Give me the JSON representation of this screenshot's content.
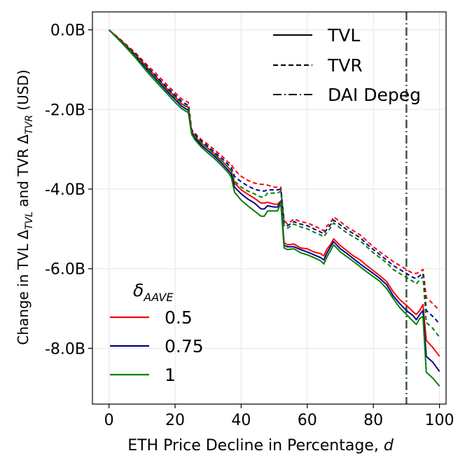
{
  "chart_data": {
    "type": "line",
    "xlabel": "ETH Price Decline in Percentage, d",
    "xlabel_parts": {
      "text": "ETH Price Decline in Percentage, ",
      "var": "d"
    },
    "ylabel": "Change in TVL Δ_TVL and TVR Δ_TVR (USD)",
    "ylabel_parts": {
      "a": "Change in TVL Δ",
      "sub1": "TVL",
      "b": " and TVR Δ",
      "sub2": "TVR",
      "c": " (USD)"
    },
    "xlim": [
      -5,
      102
    ],
    "ylim": [
      -9.4,
      0.45
    ],
    "x_ticks": [
      0,
      20,
      40,
      60,
      80,
      100
    ],
    "x_tick_labels": [
      "0",
      "20",
      "40",
      "60",
      "80",
      "100"
    ],
    "y_ticks": [
      0,
      -2,
      -4,
      -6,
      -8
    ],
    "y_tick_labels": [
      "0.0B",
      "-2.0B",
      "-4.0B",
      "-6.0B",
      "-8.0B"
    ],
    "grid": true,
    "depeg_line_x": 90,
    "style_legend": {
      "location": "top-right",
      "entries": [
        {
          "label": "TVL",
          "style": "solid"
        },
        {
          "label": "TVR",
          "style": "dashed"
        },
        {
          "label": "DAI Depeg",
          "style": "dashdot"
        }
      ]
    },
    "color_legend": {
      "location": "lower-left",
      "title": "δ_AAVE",
      "title_parts": {
        "base": "δ",
        "sub": "AAVE"
      },
      "entries": [
        {
          "label": "0.5",
          "color": "#ff0000"
        },
        {
          "label": "0.75",
          "color": "#00008b"
        },
        {
          "label": "1",
          "color": "#008000"
        }
      ]
    },
    "colors": {
      "depeg": "#3d5a45",
      "grid": "#e5e5e5"
    },
    "x": [
      0,
      2,
      4,
      6,
      8,
      10,
      12,
      14,
      16,
      18,
      20,
      22,
      23,
      24,
      25,
      26,
      28,
      30,
      32,
      34,
      36,
      37,
      38,
      40,
      42,
      44,
      46,
      47,
      48,
      50,
      51,
      52,
      53,
      54,
      56,
      58,
      60,
      62,
      64,
      65,
      66,
      67,
      68,
      70,
      72,
      74,
      76,
      78,
      80,
      82,
      84,
      86,
      88,
      90,
      92,
      93,
      94,
      95,
      96,
      98,
      100
    ],
    "series": [
      {
        "name": "TVL",
        "delta": "0.5",
        "color": "#ff0000",
        "style": "solid",
        "values": [
          0,
          -0.15,
          -0.3,
          -0.46,
          -0.62,
          -0.8,
          -0.98,
          -1.16,
          -1.34,
          -1.52,
          -1.68,
          -1.86,
          -1.9,
          -1.95,
          -2.55,
          -2.68,
          -2.85,
          -2.98,
          -3.12,
          -3.28,
          -3.45,
          -3.55,
          -3.85,
          -4.02,
          -4.13,
          -4.23,
          -4.35,
          -4.35,
          -4.33,
          -4.38,
          -4.38,
          -4.3,
          -5.35,
          -5.4,
          -5.38,
          -5.48,
          -5.5,
          -5.58,
          -5.62,
          -5.68,
          -5.5,
          -5.4,
          -5.25,
          -5.42,
          -5.55,
          -5.68,
          -5.78,
          -5.92,
          -6.05,
          -6.18,
          -6.32,
          -6.58,
          -6.78,
          -6.92,
          -7.08,
          -7.15,
          -7.05,
          -6.9,
          -7.8,
          -7.98,
          -8.2
        ]
      },
      {
        "name": "TVL",
        "delta": "0.75",
        "color": "#00008b",
        "style": "solid",
        "values": [
          0,
          -0.16,
          -0.32,
          -0.49,
          -0.66,
          -0.85,
          -1.04,
          -1.22,
          -1.4,
          -1.58,
          -1.75,
          -1.92,
          -1.97,
          -2.02,
          -2.58,
          -2.72,
          -2.9,
          -3.04,
          -3.18,
          -3.34,
          -3.52,
          -3.62,
          -3.95,
          -4.12,
          -4.25,
          -4.35,
          -4.5,
          -4.5,
          -4.42,
          -4.45,
          -4.45,
          -4.32,
          -5.42,
          -5.45,
          -5.45,
          -5.52,
          -5.58,
          -5.65,
          -5.72,
          -5.78,
          -5.6,
          -5.45,
          -5.32,
          -5.5,
          -5.62,
          -5.75,
          -5.88,
          -6,
          -6.12,
          -6.25,
          -6.4,
          -6.68,
          -6.88,
          -7.05,
          -7.18,
          -7.28,
          -7.15,
          -7.05,
          -8.2,
          -8.35,
          -8.58
        ]
      },
      {
        "name": "TVL",
        "delta": "1",
        "color": "#008000",
        "style": "solid",
        "values": [
          0,
          -0.17,
          -0.34,
          -0.52,
          -0.7,
          -0.9,
          -1.1,
          -1.28,
          -1.46,
          -1.64,
          -1.82,
          -1.98,
          -2.03,
          -2.08,
          -2.62,
          -2.76,
          -2.95,
          -3.1,
          -3.24,
          -3.4,
          -3.58,
          -3.7,
          -4.08,
          -4.28,
          -4.42,
          -4.55,
          -4.68,
          -4.68,
          -4.55,
          -4.55,
          -4.55,
          -4.35,
          -5.48,
          -5.52,
          -5.5,
          -5.6,
          -5.65,
          -5.72,
          -5.8,
          -5.88,
          -5.7,
          -5.55,
          -5.4,
          -5.58,
          -5.7,
          -5.82,
          -5.95,
          -6.08,
          -6.2,
          -6.32,
          -6.5,
          -6.75,
          -6.98,
          -7.15,
          -7.32,
          -7.4,
          -7.25,
          -7.2,
          -8.6,
          -8.75,
          -8.95
        ]
      },
      {
        "name": "TVR",
        "delta": "0.5",
        "color": "#ff0000",
        "style": "dashed",
        "values": [
          0,
          -0.14,
          -0.28,
          -0.43,
          -0.58,
          -0.75,
          -0.92,
          -1.08,
          -1.25,
          -1.42,
          -1.58,
          -1.74,
          -1.78,
          -1.82,
          -2.5,
          -2.6,
          -2.76,
          -2.88,
          -3.02,
          -3.16,
          -3.32,
          -3.38,
          -3.52,
          -3.68,
          -3.78,
          -3.85,
          -3.88,
          -3.88,
          -3.9,
          -3.95,
          -3.95,
          -3.95,
          -4.78,
          -4.88,
          -4.75,
          -4.82,
          -4.85,
          -4.92,
          -5,
          -5.05,
          -4.92,
          -4.85,
          -4.7,
          -4.82,
          -4.95,
          -5.05,
          -5.15,
          -5.3,
          -5.45,
          -5.58,
          -5.7,
          -5.82,
          -5.92,
          -6.02,
          -6.12,
          -6.12,
          -6.08,
          -6.02,
          -6.72,
          -6.88,
          -7.05
        ]
      },
      {
        "name": "TVR",
        "delta": "0.75",
        "color": "#00008b",
        "style": "dashed",
        "values": [
          0,
          -0.15,
          -0.3,
          -0.45,
          -0.61,
          -0.79,
          -0.97,
          -1.14,
          -1.31,
          -1.48,
          -1.64,
          -1.8,
          -1.85,
          -1.9,
          -2.52,
          -2.63,
          -2.8,
          -2.93,
          -3.08,
          -3.22,
          -3.38,
          -3.46,
          -3.68,
          -3.82,
          -3.92,
          -4,
          -4.05,
          -4.05,
          -4.02,
          -4.02,
          -4.02,
          -4,
          -4.85,
          -4.92,
          -4.82,
          -4.88,
          -4.92,
          -5,
          -5.08,
          -5.12,
          -5,
          -4.9,
          -4.78,
          -4.9,
          -5.02,
          -5.12,
          -5.22,
          -5.38,
          -5.52,
          -5.65,
          -5.78,
          -5.92,
          -6.02,
          -6.12,
          -6.22,
          -6.25,
          -6.18,
          -6.12,
          -7.05,
          -7.2,
          -7.38
        ]
      },
      {
        "name": "TVR",
        "delta": "1",
        "color": "#008000",
        "style": "dashed",
        "values": [
          0,
          -0.16,
          -0.31,
          -0.47,
          -0.64,
          -0.82,
          -1.01,
          -1.19,
          -1.37,
          -1.54,
          -1.7,
          -1.86,
          -1.91,
          -1.96,
          -2.55,
          -2.67,
          -2.84,
          -2.98,
          -3.13,
          -3.28,
          -3.44,
          -3.52,
          -3.8,
          -3.95,
          -4.05,
          -4.12,
          -4.2,
          -4.2,
          -4.1,
          -4.1,
          -4.1,
          -4.05,
          -4.92,
          -4.98,
          -4.88,
          -4.95,
          -5,
          -5.08,
          -5.15,
          -5.2,
          -5.08,
          -4.98,
          -4.85,
          -4.98,
          -5.1,
          -5.2,
          -5.3,
          -5.45,
          -5.6,
          -5.72,
          -5.85,
          -6.02,
          -6.12,
          -6.22,
          -6.32,
          -6.38,
          -6.28,
          -6.2,
          -7.35,
          -7.5,
          -7.72
        ]
      }
    ]
  }
}
